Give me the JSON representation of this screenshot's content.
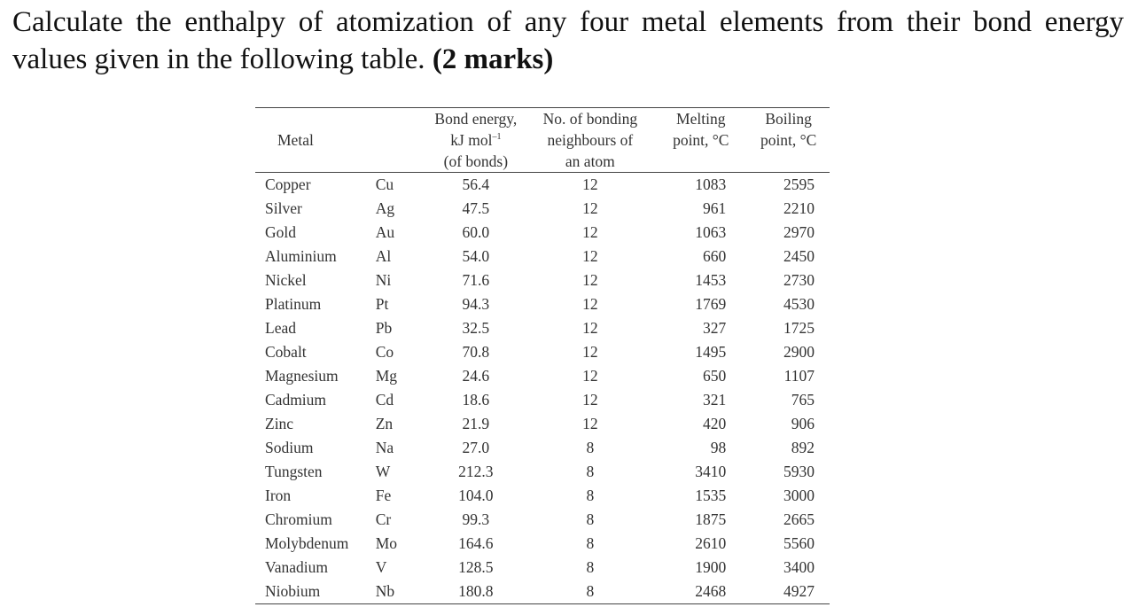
{
  "question": {
    "text": "Calculate the enthalpy of atomization of any four metal elements from their bond energy values given in the following table.",
    "marks": "(2 marks)"
  },
  "table": {
    "headers": {
      "metal": "Metal",
      "bond_energy_line1": "Bond energy,",
      "bond_energy_unit": "kJ mol",
      "bond_energy_unit_sup": "–1",
      "bond_energy_line3": "(of bonds)",
      "neighbours_line1": "No. of bonding",
      "neighbours_line2": "neighbours of",
      "neighbours_line3": "an atom",
      "melting_line1": "Melting",
      "melting_line2": "point, °C",
      "boiling_line1": "Boiling",
      "boiling_line2": "point, °C"
    },
    "rows": [
      {
        "metal": "Copper",
        "symbol": "Cu",
        "bond_energy": "56.4",
        "neighbours": "12",
        "melting": "1083",
        "boiling": "2595"
      },
      {
        "metal": "Silver",
        "symbol": "Ag",
        "bond_energy": "47.5",
        "neighbours": "12",
        "melting": "961",
        "boiling": "2210"
      },
      {
        "metal": "Gold",
        "symbol": "Au",
        "bond_energy": "60.0",
        "neighbours": "12",
        "melting": "1063",
        "boiling": "2970"
      },
      {
        "metal": "Aluminium",
        "symbol": "Al",
        "bond_energy": "54.0",
        "neighbours": "12",
        "melting": "660",
        "boiling": "2450"
      },
      {
        "metal": "Nickel",
        "symbol": "Ni",
        "bond_energy": "71.6",
        "neighbours": "12",
        "melting": "1453",
        "boiling": "2730"
      },
      {
        "metal": "Platinum",
        "symbol": "Pt",
        "bond_energy": "94.3",
        "neighbours": "12",
        "melting": "1769",
        "boiling": "4530"
      },
      {
        "metal": "Lead",
        "symbol": "Pb",
        "bond_energy": "32.5",
        "neighbours": "12",
        "melting": "327",
        "boiling": "1725"
      },
      {
        "metal": "Cobalt",
        "symbol": "Co",
        "bond_energy": "70.8",
        "neighbours": "12",
        "melting": "1495",
        "boiling": "2900"
      },
      {
        "metal": "Magnesium",
        "symbol": "Mg",
        "bond_energy": "24.6",
        "neighbours": "12",
        "melting": "650",
        "boiling": "1107"
      },
      {
        "metal": "Cadmium",
        "symbol": "Cd",
        "bond_energy": "18.6",
        "neighbours": "12",
        "melting": "321",
        "boiling": "765"
      },
      {
        "metal": "Zinc",
        "symbol": "Zn",
        "bond_energy": "21.9",
        "neighbours": "12",
        "melting": "420",
        "boiling": "906"
      },
      {
        "metal": "Sodium",
        "symbol": "Na",
        "bond_energy": "27.0",
        "neighbours": "8",
        "melting": "98",
        "boiling": "892"
      },
      {
        "metal": "Tungsten",
        "symbol": "W",
        "bond_energy": "212.3",
        "neighbours": "8",
        "melting": "3410",
        "boiling": "5930"
      },
      {
        "metal": "Iron",
        "symbol": "Fe",
        "bond_energy": "104.0",
        "neighbours": "8",
        "melting": "1535",
        "boiling": "3000"
      },
      {
        "metal": "Chromium",
        "symbol": "Cr",
        "bond_energy": "99.3",
        "neighbours": "8",
        "melting": "1875",
        "boiling": "2665"
      },
      {
        "metal": "Molybdenum",
        "symbol": "Mo",
        "bond_energy": "164.6",
        "neighbours": "8",
        "melting": "2610",
        "boiling": "5560"
      },
      {
        "metal": "Vanadium",
        "symbol": "V",
        "bond_energy": "128.5",
        "neighbours": "8",
        "melting": "1900",
        "boiling": "3400"
      },
      {
        "metal": "Niobium",
        "symbol": "Nb",
        "bond_energy": "180.8",
        "neighbours": "8",
        "melting": "2468",
        "boiling": "4927"
      }
    ]
  }
}
